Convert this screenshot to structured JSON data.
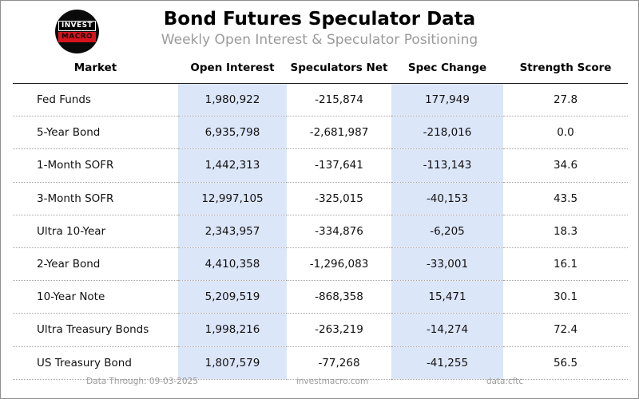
{
  "colors": {
    "highlight_column": "#dce6f9",
    "logo_red": "#d7141e",
    "muted_text": "#9a9a9a",
    "border": "#8e8e8e"
  },
  "logo": {
    "top": "INVEST",
    "bottom": "MACRO"
  },
  "header": {
    "title": "Bond Futures Speculator Data",
    "subtitle": "Weekly Open Interest & Speculator Positioning"
  },
  "chart_data": {
    "type": "table",
    "title": "Bond Futures Speculator Data",
    "subtitle": "Weekly Open Interest & Speculator Positioning",
    "columns": [
      "Market",
      "Open Interest",
      "Speculators Net",
      "Spec Change",
      "Strength Score"
    ],
    "highlighted_columns": [
      "Open Interest",
      "Spec Change"
    ],
    "rows": [
      [
        "Fed Funds",
        "1,980,922",
        "-215,874",
        "177,949",
        "27.8"
      ],
      [
        "5-Year Bond",
        "6,935,798",
        "-2,681,987",
        "-218,016",
        "0.0"
      ],
      [
        "1-Month SOFR",
        "1,442,313",
        "-137,641",
        "-113,143",
        "34.6"
      ],
      [
        "3-Month SOFR",
        "12,997,105",
        "-325,015",
        "-40,153",
        "43.5"
      ],
      [
        "Ultra 10-Year",
        "2,343,957",
        "-334,876",
        "-6,205",
        "18.3"
      ],
      [
        "2-Year Bond",
        "4,410,358",
        "-1,296,083",
        "-33,001",
        "16.1"
      ],
      [
        "10-Year Note",
        "5,209,519",
        "-868,358",
        "15,471",
        "30.1"
      ],
      [
        "Ultra Treasury Bonds",
        "1,998,216",
        "-263,219",
        "-14,274",
        "72.4"
      ],
      [
        "US Treasury Bond",
        "1,807,579",
        "-77,268",
        "-41,255",
        "56.5"
      ]
    ]
  },
  "footer": {
    "data_through": "Data Through: 09-03-2025",
    "website": "investmacro.com",
    "source": "data:cftc"
  }
}
